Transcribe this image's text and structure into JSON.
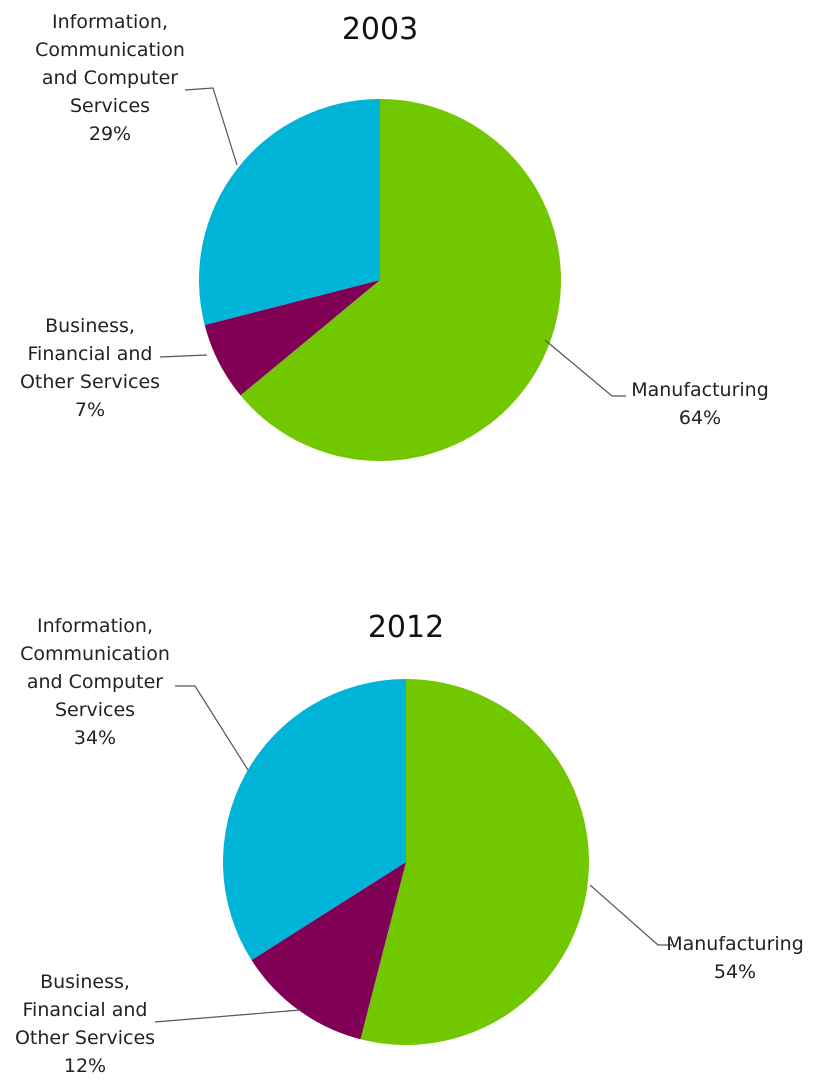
{
  "chart_data": [
    {
      "type": "pie",
      "title": "2003",
      "categories": [
        "Manufacturing",
        "Business, Financial and Other Services",
        "Information, Communication and Computer Services"
      ],
      "values": [
        64,
        7,
        29
      ],
      "value_labels": [
        "64%",
        "7%",
        "29%"
      ],
      "colors": [
        "#72c800",
        "#7f0055",
        "#00b4d8"
      ]
    },
    {
      "type": "pie",
      "title": "2012",
      "categories": [
        "Manufacturing",
        "Business, Financial and Other Services",
        "Information, Communication and Computer Services"
      ],
      "values": [
        54,
        12,
        34
      ],
      "value_labels": [
        "54%",
        "12%",
        "34%"
      ],
      "colors": [
        "#72c800",
        "#7f0055",
        "#00b4d8"
      ]
    }
  ]
}
